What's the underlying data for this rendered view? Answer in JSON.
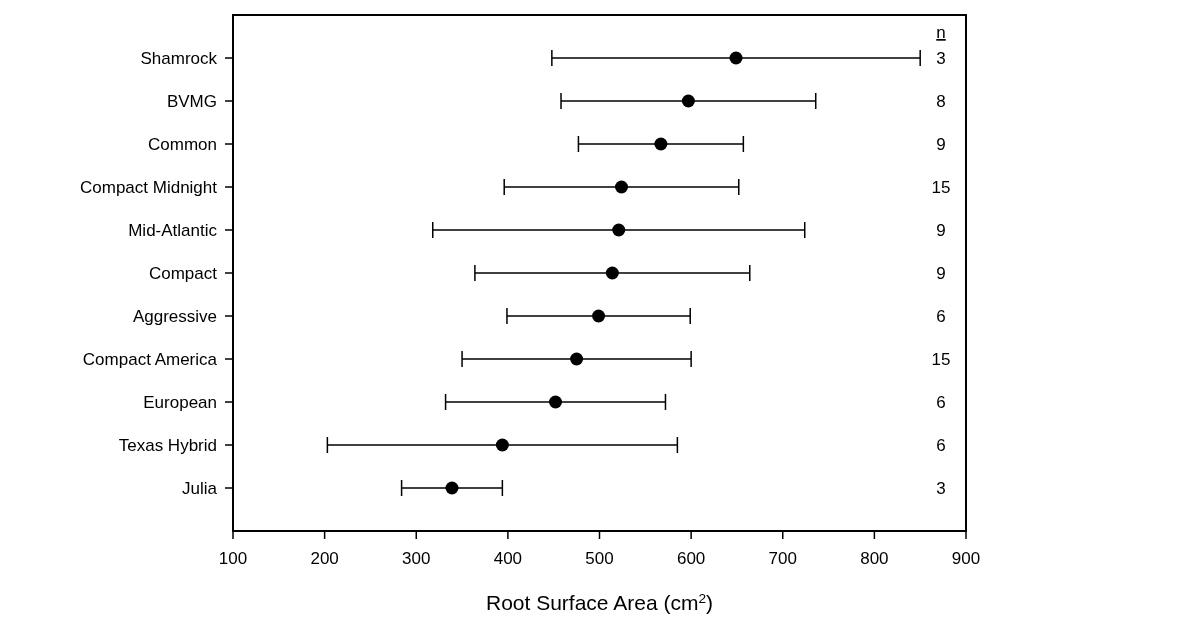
{
  "chart_data": {
    "type": "scatter",
    "orientation": "horizontal",
    "xlabel": "Root Surface Area (cm$^{2}$)",
    "categories": [
      "Shamrock",
      "BVMG",
      "Common",
      "Compact Midnight",
      "Mid-Atlantic",
      "Compact",
      "Aggressive",
      "Compact America",
      "European",
      "Texas Hybrid",
      "Julia"
    ],
    "series": [
      {
        "color": "#000000",
        "values": [
          649,
          597,
          567,
          524,
          521,
          514,
          499,
          475,
          452,
          394,
          339
        ],
        "errors": [
          201,
          139,
          90,
          128,
          203,
          150,
          100,
          125,
          120,
          191,
          55
        ]
      }
    ],
    "xlim": [
      100,
      900
    ],
    "xticks": [
      100,
      200,
      300,
      400,
      500,
      600,
      700,
      800,
      900
    ],
    "marker": "circle",
    "grid": false,
    "annotations": [
      "n",
      "3",
      "8",
      "9",
      "15",
      "9",
      "9",
      "6",
      "15",
      "6",
      "6",
      "3"
    ]
  }
}
